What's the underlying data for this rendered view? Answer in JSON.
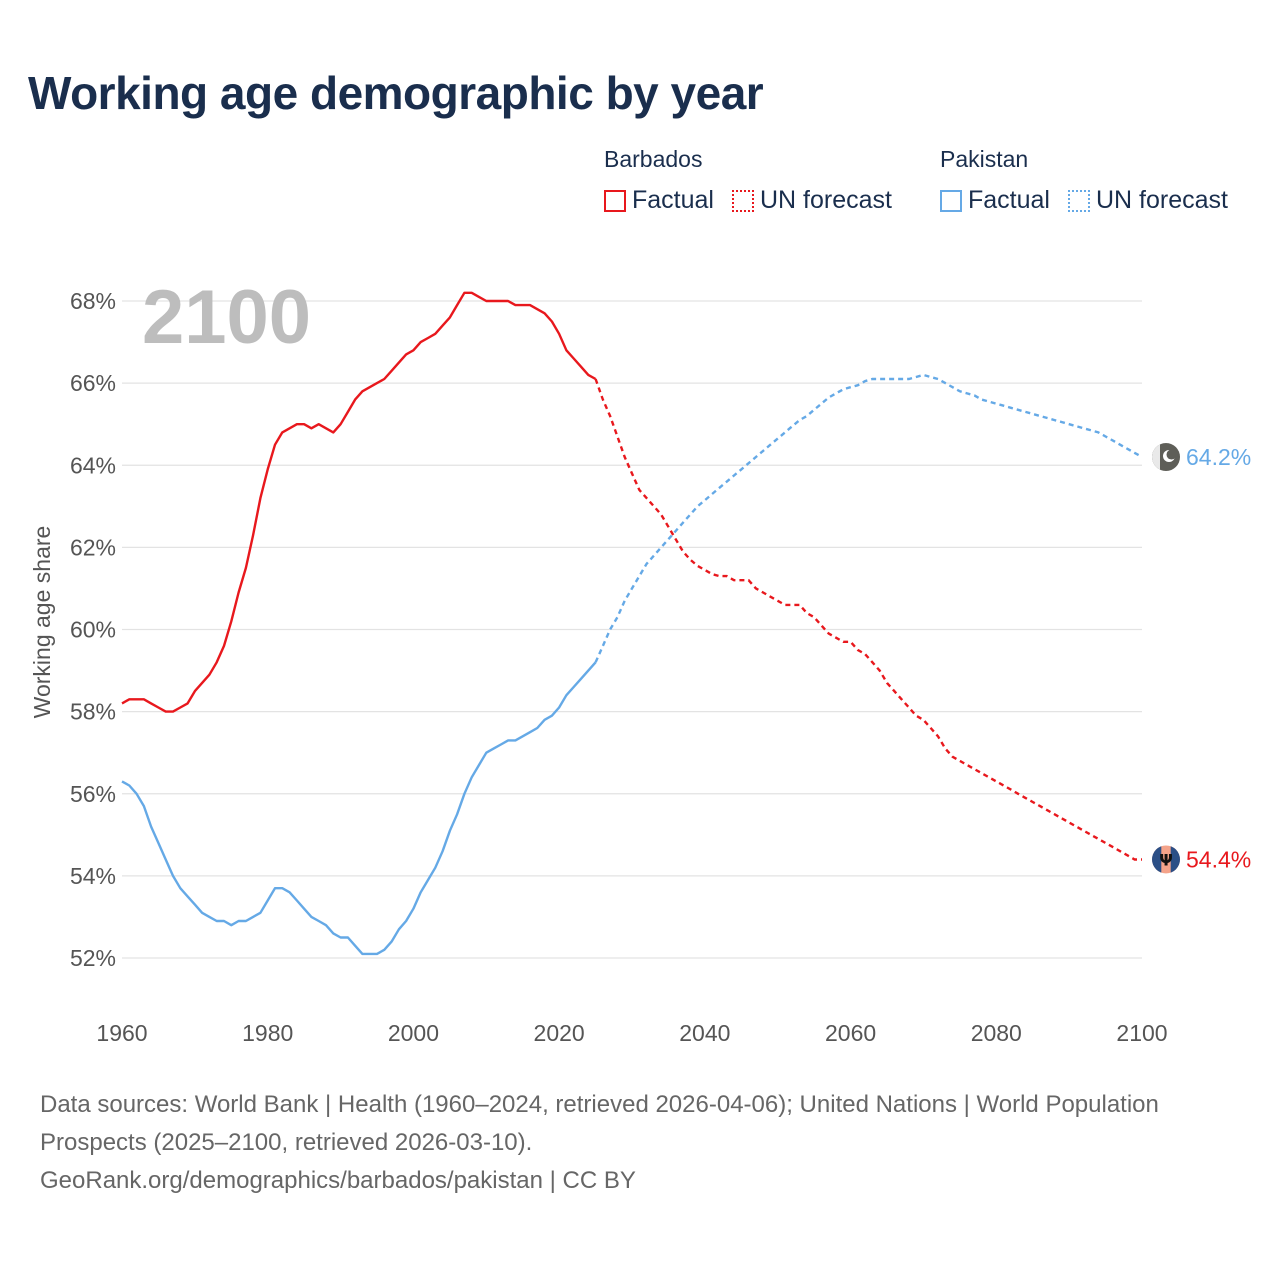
{
  "title": "Working age demographic by year",
  "legend": {
    "groups": [
      {
        "name": "Barbados",
        "factual_label": "Factual",
        "forecast_label": "UN forecast"
      },
      {
        "name": "Pakistan",
        "factual_label": "Factual",
        "forecast_label": "UN forecast"
      }
    ]
  },
  "colors": {
    "barbados": "#e8181d",
    "pakistan": "#65a9e6",
    "grid": "#e3e3e3",
    "title": "#1a2e4d"
  },
  "chart_data": {
    "type": "line",
    "title": "Working age demographic by year",
    "year_label": "2100",
    "xlabel": "",
    "ylabel": "Working age share",
    "xlim": [
      1960,
      2100
    ],
    "ylim": [
      51,
      68.5
    ],
    "x_ticks": [
      1960,
      1980,
      2000,
      2020,
      2040,
      2060,
      2080,
      2100
    ],
    "y_ticks": [
      52,
      54,
      56,
      58,
      60,
      62,
      64,
      66,
      68
    ],
    "y_tick_labels": [
      "52%",
      "54%",
      "56%",
      "58%",
      "60%",
      "62%",
      "64%",
      "66%",
      "68%"
    ],
    "series": [
      {
        "name": "Barbados",
        "end_label": "54.4%",
        "end_icon": "barbados-flag-icon",
        "factual": [
          [
            1960,
            58.2
          ],
          [
            1961,
            58.3
          ],
          [
            1962,
            58.3
          ],
          [
            1963,
            58.3
          ],
          [
            1964,
            58.2
          ],
          [
            1965,
            58.1
          ],
          [
            1966,
            58.0
          ],
          [
            1967,
            58.0
          ],
          [
            1968,
            58.1
          ],
          [
            1969,
            58.2
          ],
          [
            1970,
            58.5
          ],
          [
            1971,
            58.7
          ],
          [
            1972,
            58.9
          ],
          [
            1973,
            59.2
          ],
          [
            1974,
            59.6
          ],
          [
            1975,
            60.2
          ],
          [
            1976,
            60.9
          ],
          [
            1977,
            61.5
          ],
          [
            1978,
            62.3
          ],
          [
            1979,
            63.2
          ],
          [
            1980,
            63.9
          ],
          [
            1981,
            64.5
          ],
          [
            1982,
            64.8
          ],
          [
            1983,
            64.9
          ],
          [
            1984,
            65.0
          ],
          [
            1985,
            65.0
          ],
          [
            1986,
            64.9
          ],
          [
            1987,
            65.0
          ],
          [
            1988,
            64.9
          ],
          [
            1989,
            64.8
          ],
          [
            1990,
            65.0
          ],
          [
            1991,
            65.3
          ],
          [
            1992,
            65.6
          ],
          [
            1993,
            65.8
          ],
          [
            1994,
            65.9
          ],
          [
            1995,
            66.0
          ],
          [
            1996,
            66.1
          ],
          [
            1997,
            66.3
          ],
          [
            1998,
            66.5
          ],
          [
            1999,
            66.7
          ],
          [
            2000,
            66.8
          ],
          [
            2001,
            67.0
          ],
          [
            2002,
            67.1
          ],
          [
            2003,
            67.2
          ],
          [
            2004,
            67.4
          ],
          [
            2005,
            67.6
          ],
          [
            2006,
            67.9
          ],
          [
            2007,
            68.2
          ],
          [
            2008,
            68.2
          ],
          [
            2009,
            68.1
          ],
          [
            2010,
            68.0
          ],
          [
            2011,
            68.0
          ],
          [
            2012,
            68.0
          ],
          [
            2013,
            68.0
          ],
          [
            2014,
            67.9
          ],
          [
            2015,
            67.9
          ],
          [
            2016,
            67.9
          ],
          [
            2017,
            67.8
          ],
          [
            2018,
            67.7
          ],
          [
            2019,
            67.5
          ],
          [
            2020,
            67.2
          ],
          [
            2021,
            66.8
          ],
          [
            2022,
            66.6
          ],
          [
            2023,
            66.4
          ],
          [
            2024,
            66.2
          ],
          [
            2025,
            66.1
          ]
        ],
        "forecast": [
          [
            2025,
            66.1
          ],
          [
            2026,
            65.6
          ],
          [
            2027,
            65.2
          ],
          [
            2028,
            64.7
          ],
          [
            2029,
            64.2
          ],
          [
            2030,
            63.8
          ],
          [
            2031,
            63.4
          ],
          [
            2032,
            63.2
          ],
          [
            2033,
            63.0
          ],
          [
            2034,
            62.8
          ],
          [
            2035,
            62.5
          ],
          [
            2036,
            62.2
          ],
          [
            2037,
            61.9
          ],
          [
            2038,
            61.7
          ],
          [
            2039,
            61.55
          ],
          [
            2040,
            61.45
          ],
          [
            2041,
            61.35
          ],
          [
            2042,
            61.3
          ],
          [
            2043,
            61.3
          ],
          [
            2044,
            61.2
          ],
          [
            2045,
            61.2
          ],
          [
            2046,
            61.2
          ],
          [
            2047,
            61.0
          ],
          [
            2048,
            60.9
          ],
          [
            2049,
            60.8
          ],
          [
            2050,
            60.7
          ],
          [
            2051,
            60.6
          ],
          [
            2052,
            60.6
          ],
          [
            2053,
            60.6
          ],
          [
            2054,
            60.4
          ],
          [
            2055,
            60.3
          ],
          [
            2056,
            60.1
          ],
          [
            2057,
            59.9
          ],
          [
            2058,
            59.8
          ],
          [
            2059,
            59.7
          ],
          [
            2060,
            59.7
          ],
          [
            2061,
            59.5
          ],
          [
            2062,
            59.4
          ],
          [
            2063,
            59.2
          ],
          [
            2064,
            59.0
          ],
          [
            2065,
            58.7
          ],
          [
            2066,
            58.5
          ],
          [
            2067,
            58.3
          ],
          [
            2068,
            58.1
          ],
          [
            2069,
            57.9
          ],
          [
            2070,
            57.8
          ],
          [
            2071,
            57.6
          ],
          [
            2072,
            57.4
          ],
          [
            2073,
            57.1
          ],
          [
            2074,
            56.9
          ],
          [
            2075,
            56.8
          ],
          [
            2076,
            56.7
          ],
          [
            2077,
            56.6
          ],
          [
            2078,
            56.5
          ],
          [
            2079,
            56.4
          ],
          [
            2080,
            56.3
          ],
          [
            2081,
            56.2
          ],
          [
            2082,
            56.1
          ],
          [
            2083,
            56.0
          ],
          [
            2084,
            55.9
          ],
          [
            2085,
            55.8
          ],
          [
            2086,
            55.7
          ],
          [
            2087,
            55.6
          ],
          [
            2088,
            55.5
          ],
          [
            2089,
            55.4
          ],
          [
            2090,
            55.3
          ],
          [
            2091,
            55.2
          ],
          [
            2092,
            55.1
          ],
          [
            2093,
            55.0
          ],
          [
            2094,
            54.9
          ],
          [
            2095,
            54.8
          ],
          [
            2096,
            54.7
          ],
          [
            2097,
            54.6
          ],
          [
            2098,
            54.5
          ],
          [
            2099,
            54.4
          ],
          [
            2100,
            54.4
          ]
        ]
      },
      {
        "name": "Pakistan",
        "end_label": "64.2%",
        "end_icon": "pakistan-flag-icon",
        "factual": [
          [
            1960,
            56.3
          ],
          [
            1961,
            56.2
          ],
          [
            1962,
            56.0
          ],
          [
            1963,
            55.7
          ],
          [
            1964,
            55.2
          ],
          [
            1965,
            54.8
          ],
          [
            1966,
            54.4
          ],
          [
            1967,
            54.0
          ],
          [
            1968,
            53.7
          ],
          [
            1969,
            53.5
          ],
          [
            1970,
            53.3
          ],
          [
            1971,
            53.1
          ],
          [
            1972,
            53.0
          ],
          [
            1973,
            52.9
          ],
          [
            1974,
            52.9
          ],
          [
            1975,
            52.8
          ],
          [
            1976,
            52.9
          ],
          [
            1977,
            52.9
          ],
          [
            1978,
            53.0
          ],
          [
            1979,
            53.1
          ],
          [
            1980,
            53.4
          ],
          [
            1981,
            53.7
          ],
          [
            1982,
            53.7
          ],
          [
            1983,
            53.6
          ],
          [
            1984,
            53.4
          ],
          [
            1985,
            53.2
          ],
          [
            1986,
            53.0
          ],
          [
            1987,
            52.9
          ],
          [
            1988,
            52.8
          ],
          [
            1989,
            52.6
          ],
          [
            1990,
            52.5
          ],
          [
            1991,
            52.5
          ],
          [
            1992,
            52.3
          ],
          [
            1993,
            52.1
          ],
          [
            1994,
            52.1
          ],
          [
            1995,
            52.1
          ],
          [
            1996,
            52.2
          ],
          [
            1997,
            52.4
          ],
          [
            1998,
            52.7
          ],
          [
            1999,
            52.9
          ],
          [
            2000,
            53.2
          ],
          [
            2001,
            53.6
          ],
          [
            2002,
            53.9
          ],
          [
            2003,
            54.2
          ],
          [
            2004,
            54.6
          ],
          [
            2005,
            55.1
          ],
          [
            2006,
            55.5
          ],
          [
            2007,
            56.0
          ],
          [
            2008,
            56.4
          ],
          [
            2009,
            56.7
          ],
          [
            2010,
            57.0
          ],
          [
            2011,
            57.1
          ],
          [
            2012,
            57.2
          ],
          [
            2013,
            57.3
          ],
          [
            2014,
            57.3
          ],
          [
            2015,
            57.4
          ],
          [
            2016,
            57.5
          ],
          [
            2017,
            57.6
          ],
          [
            2018,
            57.8
          ],
          [
            2019,
            57.9
          ],
          [
            2020,
            58.1
          ],
          [
            2021,
            58.4
          ],
          [
            2022,
            58.6
          ],
          [
            2023,
            58.8
          ],
          [
            2024,
            59.0
          ],
          [
            2025,
            59.2
          ]
        ],
        "forecast": [
          [
            2025,
            59.2
          ],
          [
            2026,
            59.6
          ],
          [
            2027,
            60.0
          ],
          [
            2028,
            60.3
          ],
          [
            2029,
            60.7
          ],
          [
            2030,
            61.0
          ],
          [
            2031,
            61.3
          ],
          [
            2032,
            61.6
          ],
          [
            2033,
            61.8
          ],
          [
            2034,
            62.0
          ],
          [
            2035,
            62.2
          ],
          [
            2036,
            62.4
          ],
          [
            2037,
            62.6
          ],
          [
            2038,
            62.8
          ],
          [
            2039,
            63.0
          ],
          [
            2040,
            63.15
          ],
          [
            2041,
            63.3
          ],
          [
            2042,
            63.45
          ],
          [
            2043,
            63.6
          ],
          [
            2044,
            63.75
          ],
          [
            2045,
            63.9
          ],
          [
            2046,
            64.05
          ],
          [
            2047,
            64.2
          ],
          [
            2048,
            64.35
          ],
          [
            2049,
            64.5
          ],
          [
            2050,
            64.65
          ],
          [
            2051,
            64.8
          ],
          [
            2052,
            64.95
          ],
          [
            2053,
            65.1
          ],
          [
            2054,
            65.2
          ],
          [
            2055,
            65.35
          ],
          [
            2056,
            65.5
          ],
          [
            2057,
            65.65
          ],
          [
            2058,
            65.75
          ],
          [
            2059,
            65.85
          ],
          [
            2060,
            65.9
          ],
          [
            2061,
            65.95
          ],
          [
            2062,
            66.05
          ],
          [
            2063,
            66.1
          ],
          [
            2064,
            66.1
          ],
          [
            2065,
            66.1
          ],
          [
            2066,
            66.1
          ],
          [
            2067,
            66.1
          ],
          [
            2068,
            66.1
          ],
          [
            2069,
            66.15
          ],
          [
            2070,
            66.2
          ],
          [
            2071,
            66.15
          ],
          [
            2072,
            66.1
          ],
          [
            2073,
            66.0
          ],
          [
            2074,
            65.9
          ],
          [
            2075,
            65.8
          ],
          [
            2076,
            65.75
          ],
          [
            2077,
            65.7
          ],
          [
            2078,
            65.6
          ],
          [
            2079,
            65.55
          ],
          [
            2080,
            65.5
          ],
          [
            2081,
            65.45
          ],
          [
            2082,
            65.4
          ],
          [
            2083,
            65.35
          ],
          [
            2084,
            65.3
          ],
          [
            2085,
            65.25
          ],
          [
            2086,
            65.2
          ],
          [
            2087,
            65.15
          ],
          [
            2088,
            65.1
          ],
          [
            2089,
            65.05
          ],
          [
            2090,
            65.0
          ],
          [
            2091,
            64.95
          ],
          [
            2092,
            64.9
          ],
          [
            2093,
            64.85
          ],
          [
            2094,
            64.8
          ],
          [
            2095,
            64.7
          ],
          [
            2096,
            64.6
          ],
          [
            2097,
            64.5
          ],
          [
            2098,
            64.4
          ],
          [
            2099,
            64.3
          ],
          [
            2100,
            64.2
          ]
        ]
      }
    ]
  },
  "footer": {
    "line1": "Data sources: World Bank | Health (1960–2024, retrieved 2026-04-06); United Nations | World Population Prospects (2025–2100, retrieved 2026-03-10).",
    "line2": "GeoRank.org/demographics/barbados/pakistan | CC BY"
  }
}
